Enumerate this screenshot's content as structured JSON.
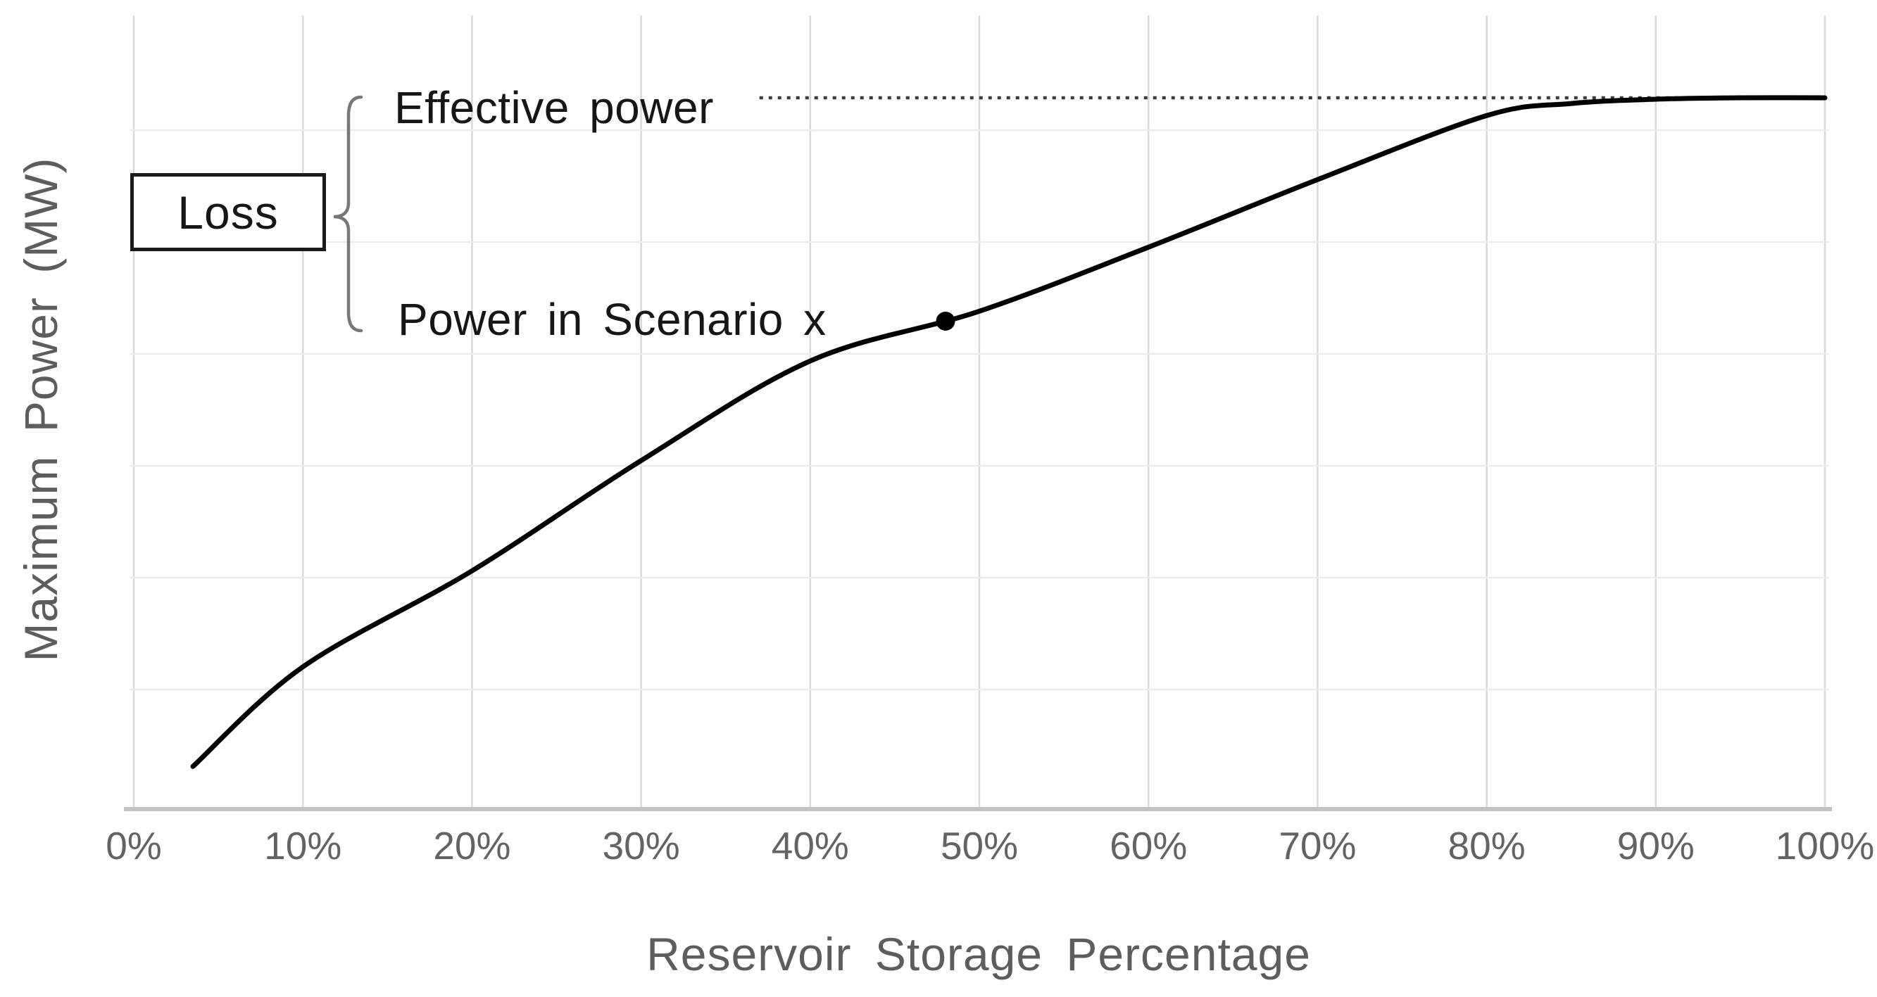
{
  "figure": {
    "background": "#ffffff"
  },
  "x_axis": {
    "title": "Reservoir Storage Percentage",
    "tick_labels": [
      "0%",
      "10%",
      "20%",
      "30%",
      "40%",
      "50%",
      "60%",
      "70%",
      "80%",
      "90%",
      "100%"
    ],
    "tick_values": [
      0,
      10,
      20,
      30,
      40,
      50,
      60,
      70,
      80,
      90,
      100
    ]
  },
  "y_axis": {
    "title": "Maximum Power (MW)",
    "tick_labels": []
  },
  "annotations": {
    "effective_power_label": "Effective power",
    "scenario_power_label": "Power in Scenario x",
    "loss_label": "Loss"
  },
  "chart_data": {
    "type": "line",
    "title": "",
    "xlabel": "Reservoir Storage Percentage",
    "ylabel": "Maximum Power (MW)",
    "xlim": [
      0,
      100
    ],
    "ylim": [
      0,
      111
    ],
    "y_units": "relative power, unlabeled axis; 100 = effective power plateau",
    "grid": true,
    "legend_position": "none",
    "x_tick_labels": [
      "0%",
      "10%",
      "20%",
      "30%",
      "40%",
      "50%",
      "60%",
      "70%",
      "80%",
      "90%",
      "100%"
    ],
    "y_tick_labels": [],
    "series": [
      {
        "name": "Maximum power vs reservoir storage",
        "style": "solid",
        "color": "#000000",
        "x": [
          3.5,
          10,
          20,
          30,
          40,
          50,
          60,
          70,
          80,
          85,
          90,
          95,
          100
        ],
        "y": [
          6,
          20,
          33.5,
          49,
          63,
          70,
          79,
          88.5,
          97.5,
          99.2,
          99.8,
          100,
          100
        ]
      }
    ],
    "reference_line": {
      "name": "Effective power",
      "style": "dotted",
      "color": "#3c3c3c",
      "y": 100,
      "x_start": 37,
      "x_end": 100
    },
    "point_marker": {
      "name": "Power in Scenario x",
      "x": 48,
      "y": 68.6,
      "color": "#000000"
    }
  },
  "colors": {
    "curve": "#000000",
    "dotted_line": "#3c3c3c",
    "grid_vertical": "#d9d9d9",
    "grid_horizontal": "#ececec",
    "axis_line": "#c3c3c3",
    "axis_text": "#5d5d5d",
    "annotation_text": "#161616",
    "brace": "#787878"
  }
}
